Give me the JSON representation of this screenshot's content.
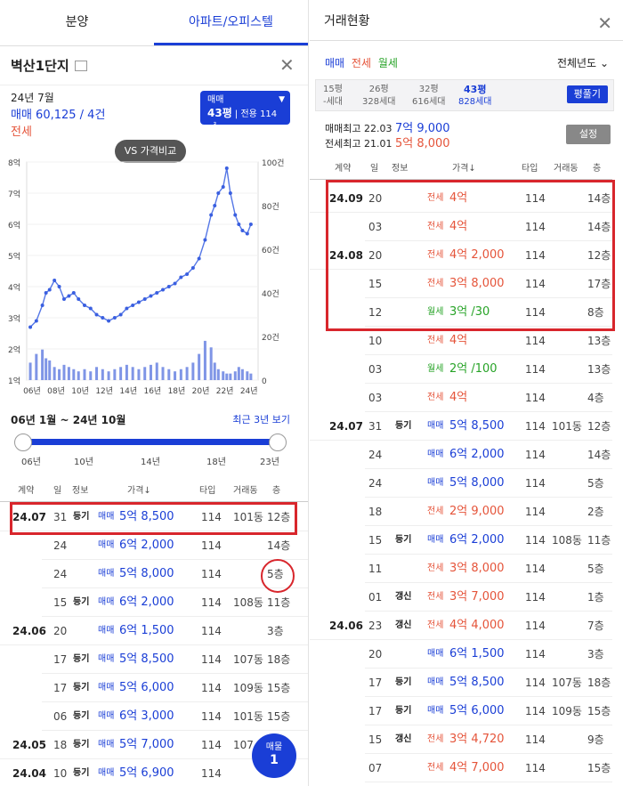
{
  "left": {
    "tabs": [
      "분양",
      "아파트/오피스텔"
    ],
    "complex_name": "벽산1단지",
    "summary": {
      "month": "24년 7월",
      "sale": "매매 60,125 / 4건",
      "jeonse": "전세"
    },
    "selector": {
      "type": "매매",
      "size": "43평",
      "exclusive": "전용 114㎡"
    },
    "vs_button": "VS 가격비교",
    "chart_data": {
      "type": "line",
      "y_left_ticks": [
        "8억",
        "7억",
        "6억",
        "5억",
        "4억",
        "3억",
        "2억",
        "1억"
      ],
      "y_right_ticks": [
        "100건",
        "80건",
        "60건",
        "40건",
        "20건",
        "0"
      ],
      "x_ticks": [
        "06년",
        "08년",
        "10년",
        "12년",
        "14년",
        "16년",
        "18년",
        "20년",
        "22년",
        "24년"
      ],
      "ylim_left": [
        1,
        8
      ],
      "ylim_right": [
        0,
        100
      ],
      "x": [
        2006,
        2006.5,
        2007,
        2007.3,
        2007.6,
        2008,
        2008.4,
        2008.8,
        2009.2,
        2009.6,
        2010,
        2010.5,
        2011,
        2011.5,
        2012,
        2012.5,
        2013,
        2013.5,
        2014,
        2014.5,
        2015,
        2015.5,
        2016,
        2016.5,
        2017,
        2017.5,
        2018,
        2018.5,
        2019,
        2019.5,
        2020,
        2020.5,
        2021,
        2021.3,
        2021.6,
        2022,
        2022.3,
        2022.6,
        2023,
        2023.3,
        2023.6,
        2024,
        2024.3
      ],
      "price": [
        2.7,
        2.9,
        3.4,
        3.8,
        3.9,
        4.2,
        4.0,
        3.6,
        3.7,
        3.8,
        3.6,
        3.4,
        3.3,
        3.1,
        3.0,
        2.9,
        3.0,
        3.1,
        3.3,
        3.4,
        3.5,
        3.6,
        3.7,
        3.8,
        3.9,
        4.0,
        4.1,
        4.3,
        4.4,
        4.6,
        4.9,
        5.5,
        6.3,
        6.6,
        7.0,
        7.2,
        7.8,
        7.0,
        6.3,
        6.0,
        5.8,
        5.7,
        6.0
      ],
      "volume": [
        8,
        12,
        14,
        10,
        9,
        6,
        5,
        7,
        6,
        5,
        4,
        5,
        4,
        6,
        5,
        4,
        5,
        6,
        7,
        6,
        5,
        6,
        7,
        8,
        6,
        5,
        4,
        5,
        6,
        8,
        12,
        18,
        15,
        8,
        5,
        4,
        3,
        3,
        4,
        6,
        5,
        4,
        3
      ]
    },
    "range": "06년 1월 ~ 24년 10월",
    "recent": "최근 3년 보기",
    "slider_ticks": [
      "06년",
      "10년",
      "14년",
      "18년",
      "23년"
    ],
    "table_headers": [
      "계약",
      "일",
      "정보",
      "가격↓",
      "타입",
      "거래동",
      "층"
    ],
    "rows": [
      {
        "date": "24.07",
        "day": "31",
        "info": "등기",
        "type": "매매",
        "price": "5억 8,500",
        "size": "114",
        "dong": "101동",
        "floor": "12층"
      },
      {
        "date": "",
        "day": "24",
        "info": "",
        "type": "매매",
        "price": "6억 2,000",
        "size": "114",
        "dong": "",
        "floor": "14층"
      },
      {
        "date": "",
        "day": "24",
        "info": "",
        "type": "매매",
        "price": "5억 8,000",
        "size": "114",
        "dong": "",
        "floor": "5층"
      },
      {
        "date": "",
        "day": "15",
        "info": "등기",
        "type": "매매",
        "price": "6억 2,000",
        "size": "114",
        "dong": "108동",
        "floor": "11층"
      },
      {
        "date": "24.06",
        "day": "20",
        "info": "",
        "type": "매매",
        "price": "6억 1,500",
        "size": "114",
        "dong": "",
        "floor": "3층"
      },
      {
        "date": "",
        "day": "17",
        "info": "등기",
        "type": "매매",
        "price": "5억 8,500",
        "size": "114",
        "dong": "107동",
        "floor": "18층"
      },
      {
        "date": "",
        "day": "17",
        "info": "등기",
        "type": "매매",
        "price": "5억 6,000",
        "size": "114",
        "dong": "109동",
        "floor": "15층"
      },
      {
        "date": "",
        "day": "06",
        "info": "등기",
        "type": "매매",
        "price": "6억 3,000",
        "size": "114",
        "dong": "101동",
        "floor": "15층"
      },
      {
        "date": "24.05",
        "day": "18",
        "info": "등기",
        "type": "매매",
        "price": "5억 7,000",
        "size": "114",
        "dong": "107",
        "floor": ""
      },
      {
        "date": "24.04",
        "day": "10",
        "info": "등기",
        "type": "매매",
        "price": "5억 6,900",
        "size": "114",
        "dong": "",
        "floor": ""
      }
    ],
    "fab": {
      "label": "매물",
      "count": "1"
    }
  },
  "right": {
    "title": "거래현황",
    "filters": [
      "매매",
      "전세",
      "월세"
    ],
    "year_select": "전체년도",
    "sizes": [
      {
        "p": "15평",
        "h": "-세대"
      },
      {
        "p": "26평",
        "h": "328세대"
      },
      {
        "p": "32평",
        "h": "616세대"
      },
      {
        "p": "43평",
        "h": "828세대"
      }
    ],
    "size_btn": "평풀기",
    "sale_high": {
      "label": "매매최고",
      "date": "22.03",
      "price": "7억 9,000"
    },
    "jeonse_high": {
      "label": "전세최고",
      "date": "21.01",
      "price": "5억 8,000"
    },
    "settings": "설정",
    "table_headers": [
      "계약",
      "일",
      "정보",
      "가격↓",
      "타입",
      "거래동",
      "층"
    ],
    "rows": [
      {
        "date": "24.09",
        "day": "20",
        "info": "",
        "type": "전세",
        "price": "4억",
        "size": "114",
        "dong": "",
        "floor": "14층"
      },
      {
        "date": "",
        "day": "03",
        "info": "",
        "type": "전세",
        "price": "4억",
        "size": "114",
        "dong": "",
        "floor": "14층"
      },
      {
        "date": "24.08",
        "day": "20",
        "info": "",
        "type": "전세",
        "price": "4억 2,000",
        "size": "114",
        "dong": "",
        "floor": "12층"
      },
      {
        "date": "",
        "day": "15",
        "info": "",
        "type": "전세",
        "price": "3억 8,000",
        "size": "114",
        "dong": "",
        "floor": "17층"
      },
      {
        "date": "",
        "day": "12",
        "info": "",
        "type": "월세",
        "price": "3억 /30",
        "size": "114",
        "dong": "",
        "floor": "8층"
      },
      {
        "date": "",
        "day": "10",
        "info": "",
        "type": "전세",
        "price": "4억",
        "size": "114",
        "dong": "",
        "floor": "13층"
      },
      {
        "date": "",
        "day": "03",
        "info": "",
        "type": "월세",
        "price": "2억 /100",
        "size": "114",
        "dong": "",
        "floor": "13층"
      },
      {
        "date": "",
        "day": "03",
        "info": "",
        "type": "전세",
        "price": "4억",
        "size": "114",
        "dong": "",
        "floor": "4층"
      },
      {
        "date": "24.07",
        "day": "31",
        "info": "등기",
        "type": "매매",
        "price": "5억 8,500",
        "size": "114",
        "dong": "101동",
        "floor": "12층"
      },
      {
        "date": "",
        "day": "24",
        "info": "",
        "type": "매매",
        "price": "6억 2,000",
        "size": "114",
        "dong": "",
        "floor": "14층"
      },
      {
        "date": "",
        "day": "24",
        "info": "",
        "type": "매매",
        "price": "5억 8,000",
        "size": "114",
        "dong": "",
        "floor": "5층"
      },
      {
        "date": "",
        "day": "18",
        "info": "",
        "type": "전세",
        "price": "2억 9,000",
        "size": "114",
        "dong": "",
        "floor": "2층"
      },
      {
        "date": "",
        "day": "15",
        "info": "등기",
        "type": "매매",
        "price": "6억 2,000",
        "size": "114",
        "dong": "108동",
        "floor": "11층"
      },
      {
        "date": "",
        "day": "11",
        "info": "",
        "type": "전세",
        "price": "3억 8,000",
        "size": "114",
        "dong": "",
        "floor": "5층"
      },
      {
        "date": "",
        "day": "01",
        "info": "갱신",
        "type": "전세",
        "price": "3억 7,000",
        "size": "114",
        "dong": "",
        "floor": "1층"
      },
      {
        "date": "24.06",
        "day": "23",
        "info": "갱신",
        "type": "전세",
        "price": "4억 4,000",
        "size": "114",
        "dong": "",
        "floor": "7층"
      },
      {
        "date": "",
        "day": "20",
        "info": "",
        "type": "매매",
        "price": "6억 1,500",
        "size": "114",
        "dong": "",
        "floor": "3층"
      },
      {
        "date": "",
        "day": "17",
        "info": "등기",
        "type": "매매",
        "price": "5억 8,500",
        "size": "114",
        "dong": "107동",
        "floor": "18층"
      },
      {
        "date": "",
        "day": "17",
        "info": "등기",
        "type": "매매",
        "price": "5억 6,000",
        "size": "114",
        "dong": "109동",
        "floor": "15층"
      },
      {
        "date": "",
        "day": "15",
        "info": "갱신",
        "type": "전세",
        "price": "3억 4,720",
        "size": "114",
        "dong": "",
        "floor": "9층"
      },
      {
        "date": "",
        "day": "07",
        "info": "",
        "type": "전세",
        "price": "4억 7,000",
        "size": "114",
        "dong": "",
        "floor": "15층"
      }
    ]
  },
  "colors": {
    "blue": "#1a3ed6",
    "red": "#e5543a",
    "green": "#27a327",
    "highlight": "#d8262c"
  }
}
